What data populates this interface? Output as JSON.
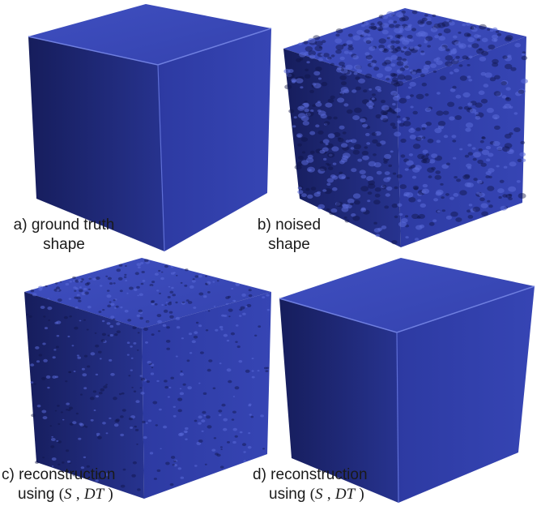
{
  "figure": {
    "panels": [
      {
        "id": "a",
        "caption_line1": "a) ground truth",
        "caption_line2": "shape",
        "surface": "smooth"
      },
      {
        "id": "b",
        "caption_line1": "b) noised",
        "caption_line2": "shape",
        "surface": "heavy-noise"
      },
      {
        "id": "c",
        "caption_line1": "c) reconstruction",
        "caption_line2_prefix": "using",
        "caption_line2_math": [
          "(",
          "S",
          ",",
          "DT",
          ")"
        ],
        "surface": "light-noise"
      },
      {
        "id": "d",
        "caption_line1": "d) reconstruction",
        "caption_line2_prefix": "using",
        "caption_line2_math": [
          "(",
          "S",
          ",",
          "DT",
          ")"
        ],
        "surface": "smooth"
      }
    ],
    "colors": {
      "top_face": "#3b4ab8",
      "left_face": "#1f2a78",
      "right_face": "#2f3da6",
      "edge_highlight": "#6f7fe0",
      "caption": "#1a1a1a"
    }
  }
}
